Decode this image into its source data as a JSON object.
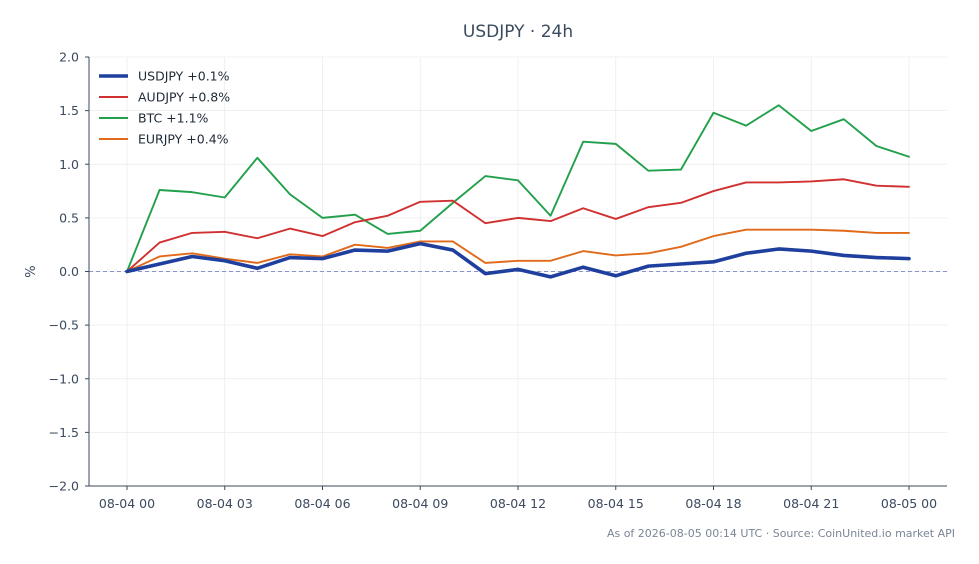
{
  "chart_data": {
    "type": "line",
    "title": "USDJPY · 24h",
    "ylabel": "%",
    "xlabel": "",
    "ylim": [
      -2.0,
      2.0
    ],
    "yticks": [
      "2.0",
      "1.5",
      "1.0",
      "0.5",
      "0.0",
      "−0.5",
      "−1.0",
      "−1.5",
      "−2.0"
    ],
    "ytick_values": [
      2.0,
      1.5,
      1.0,
      0.5,
      0.0,
      -0.5,
      -1.0,
      -1.5,
      -2.0
    ],
    "xticks": [
      "08-04 00",
      "08-04 03",
      "08-04 06",
      "08-04 09",
      "08-04 12",
      "08-04 15",
      "08-04 18",
      "08-04 21",
      "08-05 00"
    ],
    "xtick_hours": [
      0,
      3,
      6,
      9,
      12,
      15,
      18,
      21,
      24
    ],
    "x_hours": [
      0,
      1,
      2,
      3,
      4,
      5,
      6,
      7,
      8,
      9,
      10,
      11,
      12,
      13,
      14,
      15,
      16,
      17,
      18,
      19,
      20,
      21,
      22,
      23,
      24
    ],
    "baseline": 0.0,
    "grid": true,
    "legend_position": "top-left",
    "series": [
      {
        "name": "USDJPY +0.1%",
        "color": "#1f3f9e",
        "width": 3.6,
        "values": [
          0.0,
          0.07,
          0.14,
          0.1,
          0.03,
          0.13,
          0.12,
          0.2,
          0.19,
          0.26,
          0.2,
          -0.02,
          0.02,
          -0.05,
          0.04,
          -0.04,
          0.05,
          0.07,
          0.09,
          0.17,
          0.21,
          0.19,
          0.15,
          0.13,
          0.12
        ]
      },
      {
        "name": "AUDJPY +0.8%",
        "color": "#d03030",
        "width": 1.9,
        "values": [
          0.0,
          0.27,
          0.36,
          0.37,
          0.31,
          0.4,
          0.33,
          0.46,
          0.52,
          0.65,
          0.66,
          0.45,
          0.5,
          0.47,
          0.59,
          0.49,
          0.6,
          0.64,
          0.75,
          0.83,
          0.83,
          0.84,
          0.86,
          0.8,
          0.79
        ]
      },
      {
        "name": "BTC +1.1%",
        "color": "#22a04b",
        "width": 1.9,
        "values": [
          0.0,
          0.76,
          0.74,
          0.69,
          1.06,
          0.72,
          0.5,
          0.53,
          0.35,
          0.38,
          0.64,
          0.89,
          0.85,
          0.52,
          1.21,
          1.19,
          0.94,
          0.95,
          1.48,
          1.36,
          1.55,
          1.31,
          1.42,
          1.17,
          1.07
        ]
      },
      {
        "name": "EURJPY +0.4%",
        "color": "#e06a1a",
        "width": 1.9,
        "values": [
          0.0,
          0.14,
          0.17,
          0.12,
          0.08,
          0.16,
          0.14,
          0.25,
          0.22,
          0.28,
          0.28,
          0.08,
          0.1,
          0.1,
          0.19,
          0.15,
          0.17,
          0.23,
          0.33,
          0.39,
          0.39,
          0.39,
          0.38,
          0.36,
          0.36
        ]
      }
    ],
    "source": "As of 2026-08-05 00:14 UTC · Source: CoinUnited.io market API"
  },
  "colors": {
    "baseline": "#8a94c8",
    "axis": "#3b4a5e",
    "grid": "#ececec"
  }
}
